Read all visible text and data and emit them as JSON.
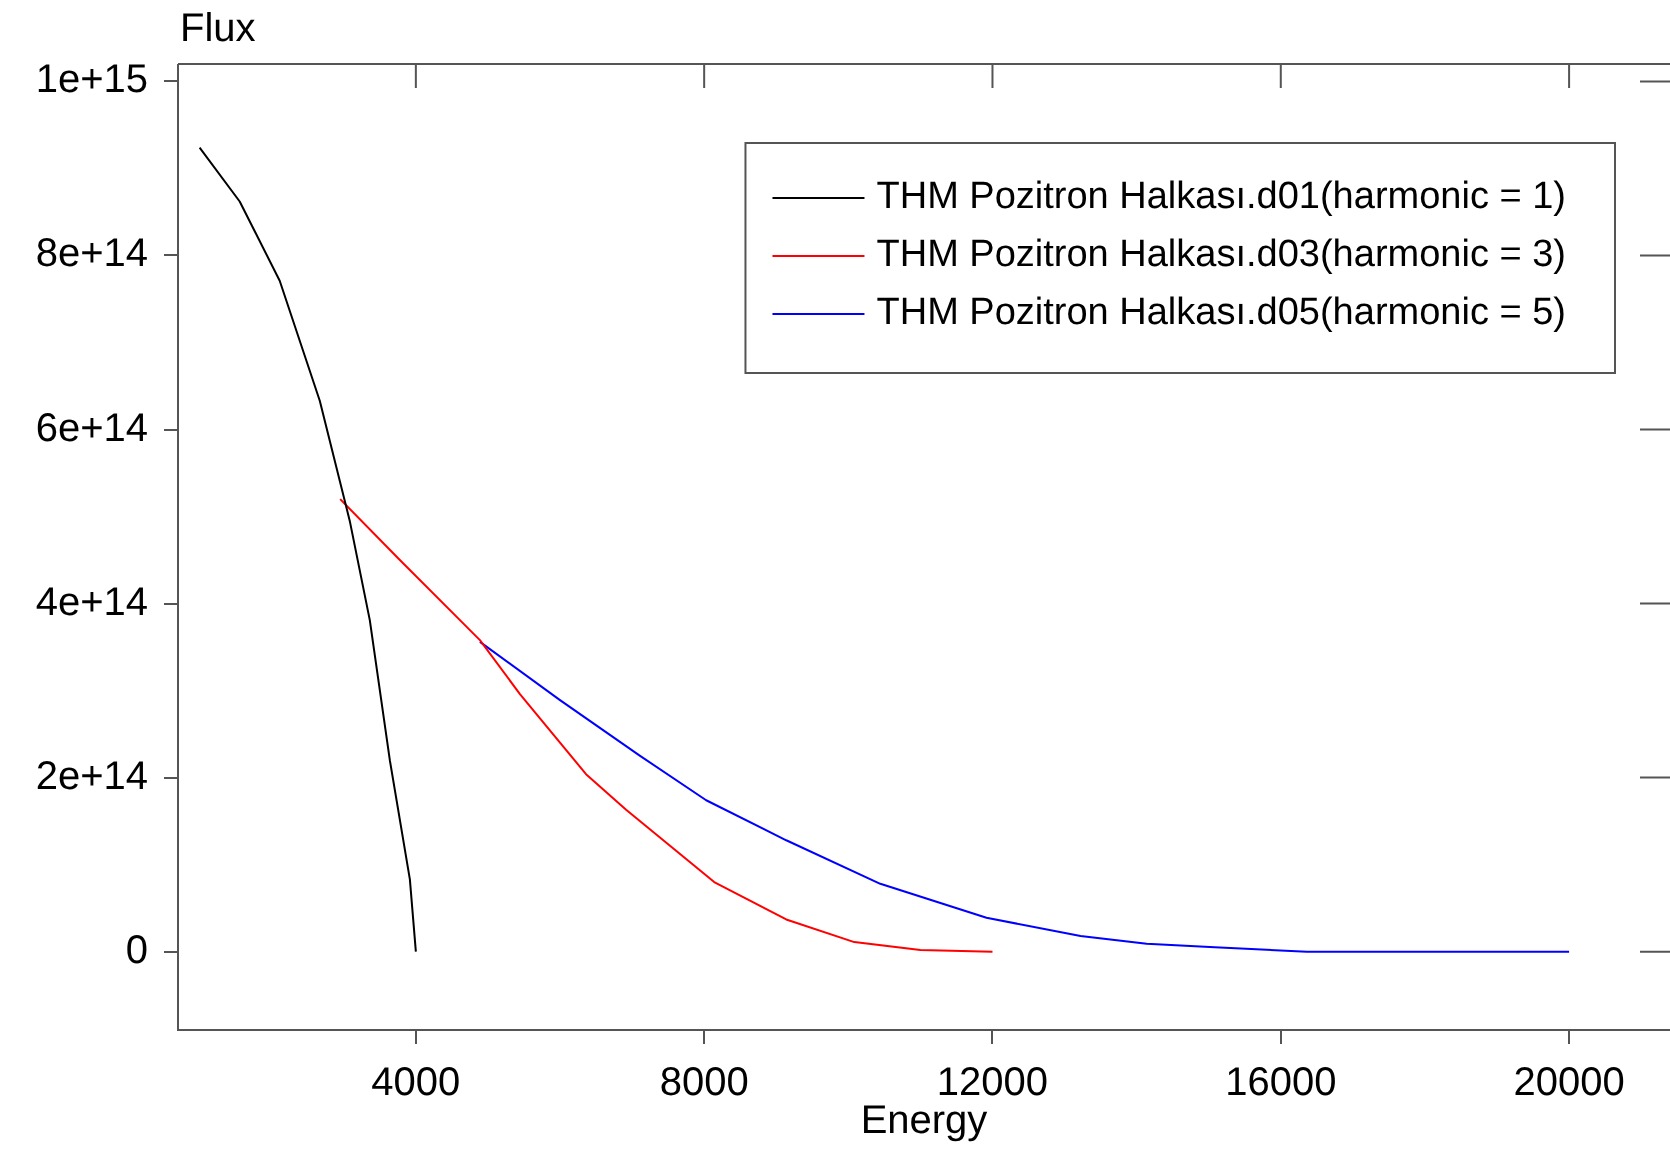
{
  "chart_data": {
    "type": "line",
    "xlabel": "Energy",
    "ylabel": "Flux",
    "xlim": [
      700,
      21400
    ],
    "xticks": [
      4000,
      8000,
      12000,
      16000,
      20000
    ],
    "ylim": [
      -90000000000000.0,
      1020000000000000.0
    ],
    "yticks": [
      {
        "value": 0,
        "label": "0"
      },
      {
        "value": 200000000000000.0,
        "label": "2e+14"
      },
      {
        "value": 400000000000000.0,
        "label": "4e+14"
      },
      {
        "value": 600000000000000.0,
        "label": "6e+14"
      },
      {
        "value": 800000000000000.0,
        "label": "8e+14"
      },
      {
        "value": 1000000000000000.0,
        "label": "1e+15"
      }
    ],
    "legend": "top right",
    "marker": "none",
    "line_style": "solid",
    "series": [
      {
        "name": "THM Pozitron Halkası.d01(harmonic = 1)",
        "color": "#000000",
        "x": [
          1000,
          1556,
          2111,
          2667,
          3083,
          3361,
          3639,
          3917,
          4000
        ],
        "values": [
          924000000000000.0,
          862000000000000.0,
          771000000000000.0,
          633000000000000.0,
          495000000000000.0,
          381000000000000.0,
          220000000000000.0,
          83000000000000.0,
          0
        ]
      },
      {
        "name": "THM Pozitron Halkası.d03(harmonic = 3)",
        "color": "#ff0000",
        "x": [
          2950,
          3778,
          4889,
          5444,
          6361,
          6917,
          8139,
          9139,
          10083,
          11000,
          12000
        ],
        "values": [
          520000000000000.0,
          450000000000000.0,
          358000000000000.0,
          296000000000000.0,
          204000000000000.0,
          163000000000000.0,
          80000000000000.0,
          37000000000000.0,
          11000000000000.0,
          2000000000000.0,
          0
        ]
      },
      {
        "name": "THM Pozitron Halkası.d05(harmonic = 5)",
        "color": "#0000ff",
        "x": [
          4889,
          6000,
          7111,
          8028,
          9139,
          10444,
          11917,
          13222,
          14139,
          15083,
          16361,
          20000
        ],
        "values": [
          356000000000000.0,
          289000000000000.0,
          225000000000000.0,
          174000000000000.0,
          128000000000000.0,
          78000000000000.0,
          39000000000000.0,
          18000000000000.0,
          9000000000000.0,
          5000000000000.0,
          0,
          0
        ]
      }
    ]
  }
}
